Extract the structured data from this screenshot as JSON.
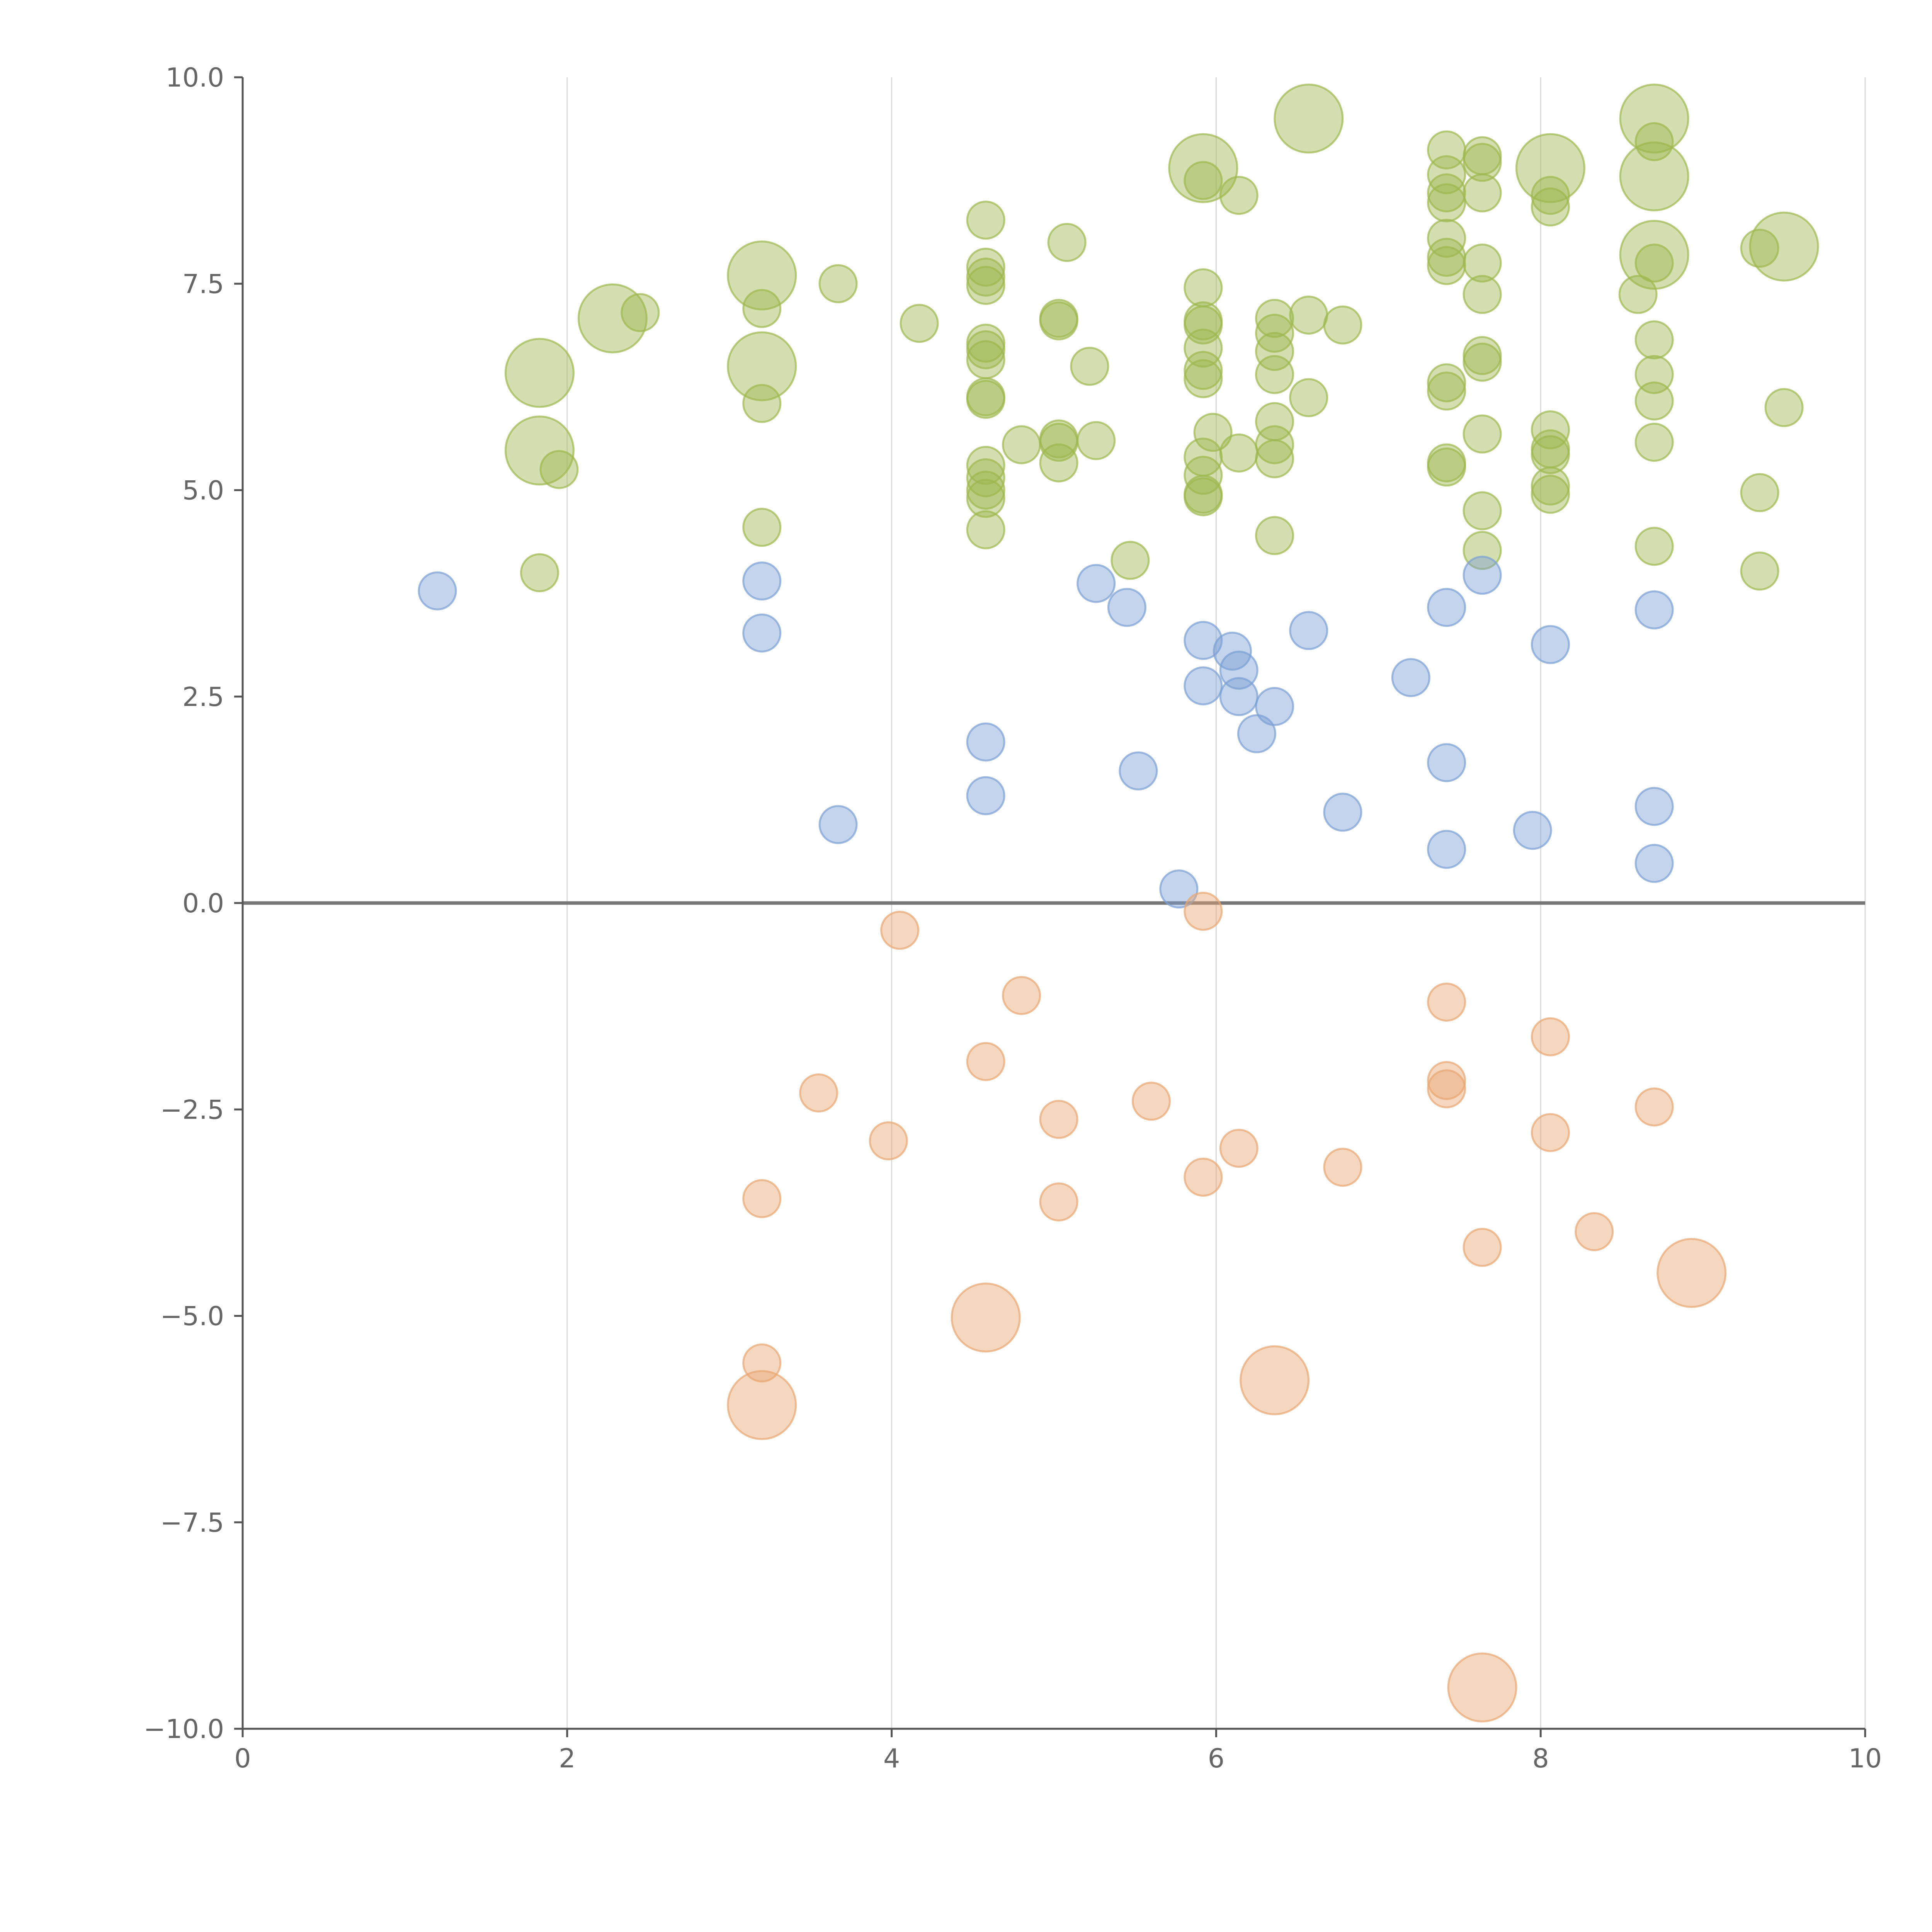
{
  "chart_data": {
    "type": "scatter",
    "title": "",
    "xlabel": "",
    "ylabel": "",
    "xlim": [
      0,
      10
    ],
    "ylim": [
      -10,
      10
    ],
    "grid": "vertical gridlines at major x ticks",
    "legend": "none",
    "x_ticks": [
      "0",
      "2",
      "4",
      "6",
      "8",
      "10"
    ],
    "y_ticks": [
      "10.0",
      "7.5",
      "5.0",
      "2.5",
      "0.0",
      "−2.5",
      "−5.0",
      "−7.5",
      "−10.0"
    ],
    "reference_line": {
      "y": 0
    },
    "size_note": "bubble size: small = 1, large = 3 (relative)",
    "series": [
      {
        "color": "#9db84f",
        "points": [
          {
            "x": 1.83,
            "y": 6.42,
            "s": 3
          },
          {
            "x": 1.83,
            "y": 5.48,
            "s": 3
          },
          {
            "x": 1.95,
            "y": 5.25,
            "s": 1
          },
          {
            "x": 1.83,
            "y": 4.0,
            "s": 1
          },
          {
            "x": 2.28,
            "y": 7.08,
            "s": 3
          },
          {
            "x": 2.45,
            "y": 7.15,
            "s": 1
          },
          {
            "x": 3.2,
            "y": 7.6,
            "s": 3
          },
          {
            "x": 3.2,
            "y": 7.2,
            "s": 1
          },
          {
            "x": 3.2,
            "y": 6.5,
            "s": 3
          },
          {
            "x": 3.2,
            "y": 6.05,
            "s": 1
          },
          {
            "x": 3.2,
            "y": 4.55,
            "s": 1
          },
          {
            "x": 3.67,
            "y": 7.5,
            "s": 1
          },
          {
            "x": 4.17,
            "y": 7.02,
            "s": 1
          },
          {
            "x": 4.58,
            "y": 8.27,
            "s": 1
          },
          {
            "x": 4.58,
            "y": 7.7,
            "s": 1
          },
          {
            "x": 4.58,
            "y": 7.58,
            "s": 1
          },
          {
            "x": 4.58,
            "y": 7.48,
            "s": 1
          },
          {
            "x": 4.58,
            "y": 6.78,
            "s": 1
          },
          {
            "x": 4.58,
            "y": 6.7,
            "s": 1
          },
          {
            "x": 4.58,
            "y": 6.58,
            "s": 1
          },
          {
            "x": 4.58,
            "y": 6.13,
            "s": 1
          },
          {
            "x": 4.58,
            "y": 6.1,
            "s": 1
          },
          {
            "x": 4.58,
            "y": 5.3,
            "s": 1
          },
          {
            "x": 4.58,
            "y": 5.15,
            "s": 1
          },
          {
            "x": 4.58,
            "y": 5.0,
            "s": 1
          },
          {
            "x": 4.58,
            "y": 4.9,
            "s": 1
          },
          {
            "x": 4.58,
            "y": 4.52,
            "s": 1
          },
          {
            "x": 4.8,
            "y": 5.55,
            "s": 1
          },
          {
            "x": 5.08,
            "y": 8.0,
            "s": 1
          },
          {
            "x": 5.03,
            "y": 7.08,
            "s": 1
          },
          {
            "x": 5.03,
            "y": 7.05,
            "s": 1
          },
          {
            "x": 5.03,
            "y": 5.62,
            "s": 1
          },
          {
            "x": 5.03,
            "y": 5.58,
            "s": 1
          },
          {
            "x": 5.03,
            "y": 5.33,
            "s": 1
          },
          {
            "x": 5.22,
            "y": 6.5,
            "s": 1
          },
          {
            "x": 5.26,
            "y": 5.6,
            "s": 1
          },
          {
            "x": 5.47,
            "y": 4.15,
            "s": 1
          },
          {
            "x": 5.92,
            "y": 8.9,
            "s": 3
          },
          {
            "x": 5.92,
            "y": 8.75,
            "s": 1
          },
          {
            "x": 5.92,
            "y": 7.45,
            "s": 1
          },
          {
            "x": 5.92,
            "y": 7.05,
            "s": 1
          },
          {
            "x": 5.92,
            "y": 7.0,
            "s": 1
          },
          {
            "x": 5.92,
            "y": 6.72,
            "s": 1
          },
          {
            "x": 5.92,
            "y": 6.45,
            "s": 1
          },
          {
            "x": 5.92,
            "y": 6.35,
            "s": 1
          },
          {
            "x": 5.98,
            "y": 5.7,
            "s": 1
          },
          {
            "x": 5.92,
            "y": 5.4,
            "s": 1
          },
          {
            "x": 5.92,
            "y": 5.18,
            "s": 1
          },
          {
            "x": 5.92,
            "y": 4.95,
            "s": 1
          },
          {
            "x": 5.92,
            "y": 4.92,
            "s": 1
          },
          {
            "x": 6.14,
            "y": 8.57,
            "s": 1
          },
          {
            "x": 6.14,
            "y": 5.45,
            "s": 1
          },
          {
            "x": 6.36,
            "y": 7.08,
            "s": 1
          },
          {
            "x": 6.36,
            "y": 6.9,
            "s": 1
          },
          {
            "x": 6.36,
            "y": 6.68,
            "s": 1
          },
          {
            "x": 6.36,
            "y": 6.4,
            "s": 1
          },
          {
            "x": 6.36,
            "y": 5.83,
            "s": 1
          },
          {
            "x": 6.36,
            "y": 5.55,
            "s": 1
          },
          {
            "x": 6.36,
            "y": 5.38,
            "s": 1
          },
          {
            "x": 6.36,
            "y": 4.45,
            "s": 1
          },
          {
            "x": 6.57,
            "y": 9.5,
            "s": 3
          },
          {
            "x": 6.57,
            "y": 7.12,
            "s": 1
          },
          {
            "x": 6.57,
            "y": 6.12,
            "s": 1
          },
          {
            "x": 6.78,
            "y": 7.0,
            "s": 1
          },
          {
            "x": 7.42,
            "y": 9.12,
            "s": 1
          },
          {
            "x": 7.42,
            "y": 8.82,
            "s": 1
          },
          {
            "x": 7.42,
            "y": 8.6,
            "s": 1
          },
          {
            "x": 7.42,
            "y": 8.48,
            "s": 1
          },
          {
            "x": 7.42,
            "y": 8.05,
            "s": 1
          },
          {
            "x": 7.42,
            "y": 7.82,
            "s": 1
          },
          {
            "x": 7.42,
            "y": 7.72,
            "s": 1
          },
          {
            "x": 7.42,
            "y": 6.3,
            "s": 1
          },
          {
            "x": 7.42,
            "y": 6.2,
            "s": 1
          },
          {
            "x": 7.42,
            "y": 5.33,
            "s": 1
          },
          {
            "x": 7.42,
            "y": 5.28,
            "s": 1
          },
          {
            "x": 7.64,
            "y": 9.05,
            "s": 1
          },
          {
            "x": 7.64,
            "y": 8.97,
            "s": 1
          },
          {
            "x": 7.64,
            "y": 8.6,
            "s": 1
          },
          {
            "x": 7.64,
            "y": 7.75,
            "s": 1
          },
          {
            "x": 7.64,
            "y": 7.37,
            "s": 1
          },
          {
            "x": 7.64,
            "y": 6.63,
            "s": 1
          },
          {
            "x": 7.64,
            "y": 6.55,
            "s": 1
          },
          {
            "x": 7.64,
            "y": 5.68,
            "s": 1
          },
          {
            "x": 7.64,
            "y": 4.75,
            "s": 1
          },
          {
            "x": 7.64,
            "y": 4.27,
            "s": 1
          },
          {
            "x": 8.06,
            "y": 8.9,
            "s": 3
          },
          {
            "x": 8.06,
            "y": 8.57,
            "s": 1
          },
          {
            "x": 8.06,
            "y": 8.43,
            "s": 1
          },
          {
            "x": 8.06,
            "y": 5.73,
            "s": 1
          },
          {
            "x": 8.06,
            "y": 5.5,
            "s": 1
          },
          {
            "x": 8.06,
            "y": 5.43,
            "s": 1
          },
          {
            "x": 8.06,
            "y": 5.05,
            "s": 1
          },
          {
            "x": 8.06,
            "y": 4.95,
            "s": 1
          },
          {
            "x": 8.7,
            "y": 9.5,
            "s": 3
          },
          {
            "x": 8.7,
            "y": 9.22,
            "s": 1
          },
          {
            "x": 8.7,
            "y": 8.8,
            "s": 3
          },
          {
            "x": 8.7,
            "y": 7.85,
            "s": 3
          },
          {
            "x": 8.7,
            "y": 7.75,
            "s": 1
          },
          {
            "x": 8.6,
            "y": 7.37,
            "s": 1
          },
          {
            "x": 8.7,
            "y": 6.82,
            "s": 1
          },
          {
            "x": 8.7,
            "y": 6.4,
            "s": 1
          },
          {
            "x": 8.7,
            "y": 6.08,
            "s": 1
          },
          {
            "x": 8.7,
            "y": 5.58,
            "s": 1
          },
          {
            "x": 8.7,
            "y": 4.32,
            "s": 1
          },
          {
            "x": 9.35,
            "y": 7.93,
            "s": 1
          },
          {
            "x": 9.5,
            "y": 7.95,
            "s": 3
          },
          {
            "x": 9.5,
            "y": 6.0,
            "s": 1
          },
          {
            "x": 9.35,
            "y": 4.97,
            "s": 1
          },
          {
            "x": 9.35,
            "y": 4.02,
            "s": 1
          }
        ]
      },
      {
        "color": "#7b9fd4",
        "points": [
          {
            "x": 1.2,
            "y": 3.78,
            "s": 1
          },
          {
            "x": 3.2,
            "y": 3.9,
            "s": 1
          },
          {
            "x": 3.2,
            "y": 3.27,
            "s": 1
          },
          {
            "x": 3.67,
            "y": 0.95,
            "s": 1
          },
          {
            "x": 4.58,
            "y": 1.95,
            "s": 1
          },
          {
            "x": 4.58,
            "y": 1.3,
            "s": 1
          },
          {
            "x": 5.26,
            "y": 3.87,
            "s": 1
          },
          {
            "x": 5.45,
            "y": 3.58,
            "s": 1
          },
          {
            "x": 5.52,
            "y": 1.6,
            "s": 1
          },
          {
            "x": 5.77,
            "y": 0.17,
            "s": 1
          },
          {
            "x": 5.92,
            "y": 3.18,
            "s": 1
          },
          {
            "x": 5.92,
            "y": 2.63,
            "s": 1
          },
          {
            "x": 6.1,
            "y": 3.05,
            "s": 1
          },
          {
            "x": 6.14,
            "y": 2.82,
            "s": 1
          },
          {
            "x": 6.14,
            "y": 2.5,
            "s": 1
          },
          {
            "x": 6.25,
            "y": 2.05,
            "s": 1
          },
          {
            "x": 6.36,
            "y": 2.38,
            "s": 1
          },
          {
            "x": 6.57,
            "y": 3.3,
            "s": 1
          },
          {
            "x": 6.78,
            "y": 1.1,
            "s": 1
          },
          {
            "x": 7.2,
            "y": 2.73,
            "s": 1
          },
          {
            "x": 7.42,
            "y": 3.58,
            "s": 1
          },
          {
            "x": 7.42,
            "y": 1.7,
            "s": 1
          },
          {
            "x": 7.42,
            "y": 0.65,
            "s": 1
          },
          {
            "x": 7.64,
            "y": 3.97,
            "s": 1
          },
          {
            "x": 7.95,
            "y": 0.88,
            "s": 1
          },
          {
            "x": 8.06,
            "y": 3.13,
            "s": 1
          },
          {
            "x": 8.7,
            "y": 3.55,
            "s": 1
          },
          {
            "x": 8.7,
            "y": 1.17,
            "s": 1
          },
          {
            "x": 8.7,
            "y": 0.48,
            "s": 1
          }
        ]
      },
      {
        "color": "#e8a672",
        "points": [
          {
            "x": 4.05,
            "y": -0.33,
            "s": 1
          },
          {
            "x": 5.92,
            "y": -0.1,
            "s": 1
          },
          {
            "x": 4.8,
            "y": -1.12,
            "s": 1
          },
          {
            "x": 4.58,
            "y": -1.92,
            "s": 1
          },
          {
            "x": 3.55,
            "y": -2.3,
            "s": 1
          },
          {
            "x": 5.6,
            "y": -2.4,
            "s": 1
          },
          {
            "x": 5.03,
            "y": -2.62,
            "s": 1
          },
          {
            "x": 3.98,
            "y": -2.88,
            "s": 1
          },
          {
            "x": 6.14,
            "y": -2.97,
            "s": 1
          },
          {
            "x": 6.78,
            "y": -3.2,
            "s": 1
          },
          {
            "x": 5.92,
            "y": -3.32,
            "s": 1
          },
          {
            "x": 3.2,
            "y": -3.58,
            "s": 1
          },
          {
            "x": 5.03,
            "y": -3.62,
            "s": 1
          },
          {
            "x": 7.42,
            "y": -1.2,
            "s": 1
          },
          {
            "x": 7.42,
            "y": -2.15,
            "s": 1
          },
          {
            "x": 7.42,
            "y": -2.25,
            "s": 1
          },
          {
            "x": 8.06,
            "y": -1.62,
            "s": 1
          },
          {
            "x": 8.06,
            "y": -2.78,
            "s": 1
          },
          {
            "x": 8.7,
            "y": -2.47,
            "s": 1
          },
          {
            "x": 8.33,
            "y": -3.98,
            "s": 1
          },
          {
            "x": 7.64,
            "y": -4.17,
            "s": 1
          },
          {
            "x": 8.93,
            "y": -4.48,
            "s": 3
          },
          {
            "x": 4.58,
            "y": -5.02,
            "s": 3
          },
          {
            "x": 3.2,
            "y": -5.57,
            "s": 1
          },
          {
            "x": 6.36,
            "y": -5.78,
            "s": 3
          },
          {
            "x": 3.2,
            "y": -6.08,
            "s": 3
          },
          {
            "x": 7.64,
            "y": -9.5,
            "s": 3
          }
        ]
      }
    ]
  }
}
